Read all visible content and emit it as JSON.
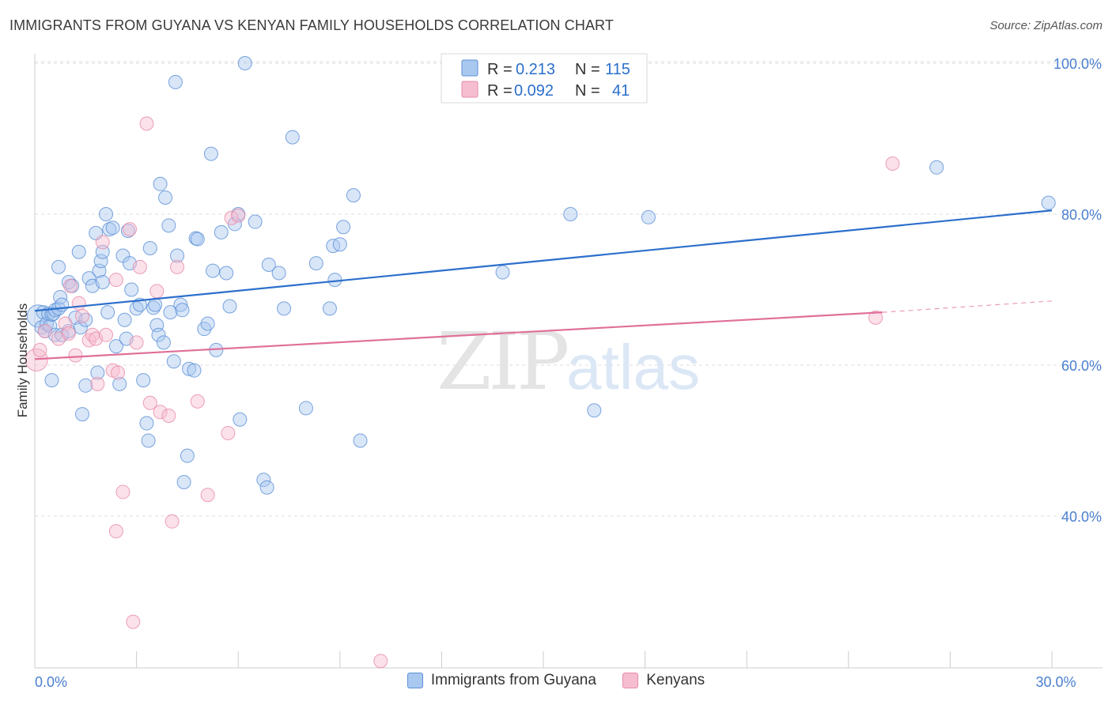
{
  "title": "IMMIGRANTS FROM GUYANA VS KENYAN FAMILY HOUSEHOLDS CORRELATION CHART",
  "source": "Source: ZipAtlas.com",
  "watermark": {
    "zip": "ZIP",
    "atlas": "atlas"
  },
  "colors": {
    "blue_fill": "#a9c8f0",
    "blue_stroke": "#5b8fd6",
    "blue_line": "#2c6fcc",
    "pink_fill": "#f6bdd0",
    "pink_stroke": "#e88aa8",
    "pink_line": "#e0709a",
    "tick_text": "#4a7fd0",
    "grid": "#dddddd"
  },
  "legend": {
    "rows": [
      {
        "r_label": "R = ",
        "r_value": "0.213",
        "n_label": "N = ",
        "n_value": "115"
      },
      {
        "r_label": "R = ",
        "r_value": "0.092",
        "n_label": "N = ",
        "n_value": "41"
      }
    ]
  },
  "chart_data": {
    "type": "scatter",
    "ylabel": "Family Households",
    "xlabel": "",
    "xlim": [
      0,
      30
    ],
    "ylim": [
      20,
      102
    ],
    "x_ticks": [
      {
        "value": 0,
        "label": "0.0%"
      },
      {
        "value": 30,
        "label": "30.0%"
      }
    ],
    "y_ticks": [
      {
        "value": 100,
        "label": "100.0%"
      },
      {
        "value": 80,
        "label": "80.0%"
      },
      {
        "value": 60,
        "label": "60.0%"
      },
      {
        "value": 40,
        "label": "40.0%"
      }
    ],
    "grid": true,
    "legend_position": "top-center",
    "series": [
      {
        "name": "Immigrants from Guyana",
        "color": "blue",
        "trend": {
          "x0": 0,
          "y0": 67.2,
          "x1": 30,
          "y1": 80.5
        },
        "points": [
          [
            0.1,
            66.5
          ],
          [
            0.2,
            65
          ],
          [
            0.25,
            67
          ],
          [
            0.3,
            64.5
          ],
          [
            0.35,
            65.5
          ],
          [
            0.4,
            66.8
          ],
          [
            0.45,
            65.2
          ],
          [
            0.5,
            66.7
          ],
          [
            0.5,
            58
          ],
          [
            0.55,
            66.8
          ],
          [
            0.6,
            64
          ],
          [
            0.6,
            67.3
          ],
          [
            0.7,
            73
          ],
          [
            0.7,
            67.5
          ],
          [
            0.75,
            69
          ],
          [
            0.8,
            64
          ],
          [
            0.8,
            68
          ],
          [
            1.0,
            71
          ],
          [
            1.0,
            64.5
          ],
          [
            1.1,
            70.5
          ],
          [
            1.2,
            66.3
          ],
          [
            1.3,
            75
          ],
          [
            1.35,
            65
          ],
          [
            1.4,
            53.5
          ],
          [
            1.5,
            57.3
          ],
          [
            1.5,
            66
          ],
          [
            1.6,
            71.5
          ],
          [
            1.7,
            70.5
          ],
          [
            1.8,
            77.5
          ],
          [
            1.85,
            59
          ],
          [
            1.9,
            72.5
          ],
          [
            1.95,
            73.8
          ],
          [
            2.0,
            71
          ],
          [
            2.0,
            75
          ],
          [
            2.1,
            80
          ],
          [
            2.15,
            67
          ],
          [
            2.2,
            78
          ],
          [
            2.3,
            78.2
          ],
          [
            2.4,
            62.5
          ],
          [
            2.5,
            57.5
          ],
          [
            2.6,
            74.5
          ],
          [
            2.65,
            66
          ],
          [
            2.7,
            63.5
          ],
          [
            2.75,
            77.8
          ],
          [
            2.8,
            73.5
          ],
          [
            2.85,
            70
          ],
          [
            3.0,
            67.5
          ],
          [
            3.1,
            68
          ],
          [
            3.2,
            58
          ],
          [
            3.3,
            52.3
          ],
          [
            3.35,
            50
          ],
          [
            3.4,
            75.5
          ],
          [
            3.5,
            67.6
          ],
          [
            3.55,
            68
          ],
          [
            3.6,
            65.3
          ],
          [
            3.65,
            64
          ],
          [
            3.7,
            84
          ],
          [
            3.8,
            63
          ],
          [
            3.85,
            82.2
          ],
          [
            3.95,
            78.5
          ],
          [
            4.0,
            67
          ],
          [
            4.1,
            60.5
          ],
          [
            4.15,
            97.5
          ],
          [
            4.2,
            74.5
          ],
          [
            4.3,
            68
          ],
          [
            4.35,
            67.3
          ],
          [
            4.4,
            44.5
          ],
          [
            4.5,
            48
          ],
          [
            4.55,
            59.5
          ],
          [
            4.7,
            59.3
          ],
          [
            4.75,
            76.8
          ],
          [
            4.8,
            76.7
          ],
          [
            5.0,
            64.8
          ],
          [
            5.1,
            65.5
          ],
          [
            5.2,
            88
          ],
          [
            5.25,
            72.5
          ],
          [
            5.35,
            62
          ],
          [
            5.5,
            77.6
          ],
          [
            5.65,
            72.2
          ],
          [
            5.75,
            67.8
          ],
          [
            5.9,
            78.7
          ],
          [
            6.0,
            80
          ],
          [
            6.05,
            52.8
          ],
          [
            6.2,
            100
          ],
          [
            6.5,
            79
          ],
          [
            6.75,
            44.8
          ],
          [
            6.85,
            43.8
          ],
          [
            6.9,
            73.3
          ],
          [
            7.2,
            72.2
          ],
          [
            7.35,
            67.5
          ],
          [
            7.6,
            90.2
          ],
          [
            8.0,
            54.3
          ],
          [
            8.3,
            73.5
          ],
          [
            8.7,
            67.5
          ],
          [
            8.8,
            75.8
          ],
          [
            8.85,
            71.3
          ],
          [
            9.0,
            76
          ],
          [
            9.1,
            78.3
          ],
          [
            9.4,
            82.5
          ],
          [
            9.6,
            50
          ],
          [
            13.8,
            72.3
          ],
          [
            15.8,
            80
          ],
          [
            16.5,
            54
          ],
          [
            18.1,
            79.6
          ],
          [
            26.6,
            86.2
          ],
          [
            29.9,
            81.5
          ]
        ]
      },
      {
        "name": "Kenyans",
        "color": "pink",
        "trend": {
          "x0": 0,
          "y0": 60.8,
          "x1": 25.0,
          "y1": 67.0
        },
        "trend_dashed_to": {
          "x": 30,
          "y": 68.5
        },
        "points": [
          [
            0.05,
            60.7
          ],
          [
            0.15,
            62
          ],
          [
            0.3,
            64.5
          ],
          [
            0.7,
            63.5
          ],
          [
            0.9,
            65.5
          ],
          [
            1.0,
            64.2
          ],
          [
            1.05,
            70.5
          ],
          [
            1.2,
            61.3
          ],
          [
            1.3,
            68.2
          ],
          [
            1.4,
            66.5
          ],
          [
            1.6,
            63.3
          ],
          [
            1.7,
            64
          ],
          [
            1.8,
            63.5
          ],
          [
            1.85,
            57.5
          ],
          [
            2.0,
            76.3
          ],
          [
            2.1,
            64
          ],
          [
            2.3,
            59.3
          ],
          [
            2.4,
            71.3
          ],
          [
            2.4,
            38
          ],
          [
            2.45,
            59
          ],
          [
            2.6,
            43.2
          ],
          [
            2.8,
            78
          ],
          [
            2.9,
            26
          ],
          [
            3.0,
            63
          ],
          [
            3.1,
            73
          ],
          [
            3.3,
            92
          ],
          [
            3.4,
            55
          ],
          [
            3.6,
            69.8
          ],
          [
            3.7,
            53.8
          ],
          [
            3.95,
            53.3
          ],
          [
            4.05,
            39.3
          ],
          [
            4.2,
            73
          ],
          [
            4.8,
            55.2
          ],
          [
            5.1,
            42.8
          ],
          [
            5.7,
            51
          ],
          [
            5.8,
            79.5
          ],
          [
            6.0,
            79.8
          ],
          [
            10.2,
            20.8
          ],
          [
            24.8,
            66.3
          ],
          [
            25.3,
            86.7
          ]
        ]
      }
    ]
  },
  "bottom_legend": [
    {
      "label": "Immigrants from Guyana",
      "color": "blue"
    },
    {
      "label": "Kenyans",
      "color": "pink"
    }
  ]
}
